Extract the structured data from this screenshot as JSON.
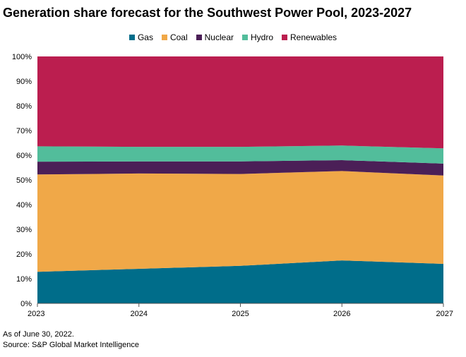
{
  "title": "Generation share forecast for the Southwest Power Pool, 2023-2027",
  "footnotes": [
    "As of June 30, 2022.",
    "Source: S&P Global Market Intelligence"
  ],
  "chart_data": {
    "type": "area",
    "stacked": true,
    "x": [
      "2023",
      "2024",
      "2025",
      "2026",
      "2027"
    ],
    "ylim": [
      0,
      100
    ],
    "yticks": [
      "0%",
      "10%",
      "20%",
      "30%",
      "40%",
      "50%",
      "60%",
      "70%",
      "80%",
      "90%",
      "100%"
    ],
    "grid": false,
    "legend_position": "top",
    "series": [
      {
        "name": "Gas",
        "color": "#006d8a",
        "values": [
          12.8,
          14.0,
          15.2,
          17.4,
          16.0
        ]
      },
      {
        "name": "Coal",
        "color": "#f0a848",
        "values": [
          39.4,
          38.6,
          37.2,
          36.2,
          35.8
        ]
      },
      {
        "name": "Nuclear",
        "color": "#4b1f57",
        "values": [
          5.2,
          4.9,
          5.1,
          4.4,
          4.8
        ]
      },
      {
        "name": "Hydro",
        "color": "#52bd9b",
        "values": [
          6.2,
          5.9,
          5.9,
          5.9,
          6.2
        ]
      },
      {
        "name": "Renewables",
        "color": "#bb1e4f",
        "values": [
          36.4,
          36.6,
          36.6,
          36.1,
          37.2
        ]
      }
    ]
  }
}
